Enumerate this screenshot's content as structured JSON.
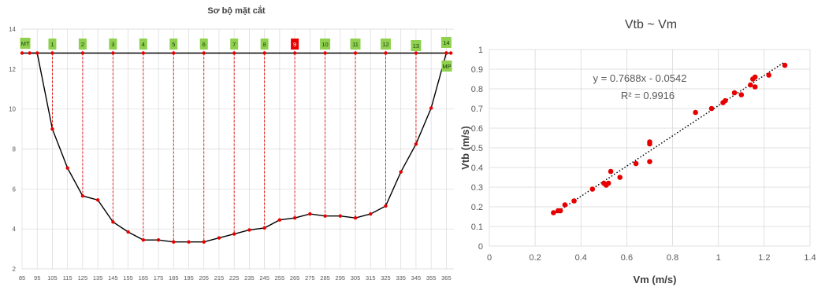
{
  "chart_data": [
    {
      "type": "line",
      "title": "Sơ bộ mặt cắt",
      "xlabel": "",
      "ylabel": "",
      "xlim": [
        85,
        370
      ],
      "ylim": [
        2,
        14
      ],
      "x_ticks": [
        "85",
        "95",
        "105",
        "115",
        "125",
        "135",
        "145",
        "155",
        "165",
        "175",
        "185",
        "195",
        "205",
        "215",
        "225",
        "235",
        "245",
        "255",
        "265",
        "275",
        "285",
        "295",
        "305",
        "315",
        "325",
        "335",
        "345",
        "355",
        "365"
      ],
      "y_ticks": [
        "2",
        "4",
        "6",
        "8",
        "10",
        "12",
        "14"
      ],
      "grid": true,
      "water_level": 12.8,
      "water_line_x": [
        85,
        365
      ],
      "profile": {
        "x": [
          90,
          95,
          105,
          115,
          125,
          135,
          145,
          155,
          165,
          175,
          185,
          195,
          205,
          215,
          225,
          235,
          245,
          255,
          265,
          275,
          285,
          295,
          305,
          315,
          325,
          335,
          345,
          355,
          365,
          368
        ],
        "y": [
          12.8,
          12.8,
          9.0,
          7.05,
          5.65,
          5.45,
          4.35,
          3.85,
          3.45,
          3.45,
          3.35,
          3.35,
          3.35,
          3.55,
          3.75,
          3.95,
          4.05,
          4.45,
          4.55,
          4.75,
          4.65,
          4.65,
          4.55,
          4.75,
          5.15,
          6.85,
          8.25,
          10.05,
          12.8,
          12.8
        ]
      },
      "verticals": [
        {
          "label": "MT",
          "x": 85,
          "flag": "green"
        },
        {
          "label": "1",
          "x": 105,
          "flag": "green"
        },
        {
          "label": "2",
          "x": 125,
          "flag": "green"
        },
        {
          "label": "3",
          "x": 145,
          "flag": "green"
        },
        {
          "label": "4",
          "x": 165,
          "flag": "green"
        },
        {
          "label": "5",
          "x": 185,
          "flag": "green"
        },
        {
          "label": "6",
          "x": 205,
          "flag": "green"
        },
        {
          "label": "7",
          "x": 225,
          "flag": "green"
        },
        {
          "label": "8",
          "x": 245,
          "flag": "green"
        },
        {
          "label": "9",
          "x": 265,
          "flag": "red"
        },
        {
          "label": "10",
          "x": 285,
          "flag": "green"
        },
        {
          "label": "11",
          "x": 305,
          "flag": "green"
        },
        {
          "label": "12",
          "x": 325,
          "flag": "green"
        },
        {
          "label": "13",
          "x": 345,
          "flag": "green"
        },
        {
          "label": "14",
          "x": 365,
          "flag": "green"
        },
        {
          "label": "MP",
          "x": 368,
          "flag": "green"
        }
      ],
      "colors": {
        "line": "#000000",
        "marker": "#e60000",
        "flag_green": "#8fd14f",
        "flag_red": "#e60000",
        "grid": "#d9d9d9"
      }
    },
    {
      "type": "scatter",
      "title": "Vtb ~ Vm",
      "xlabel": "Vm (m/s)",
      "ylabel": "Vtb (m/s)",
      "xlim": [
        0,
        1.4
      ],
      "ylim": [
        0,
        1
      ],
      "x_ticks": [
        "0",
        "0.2",
        "0.4",
        "0.6",
        "0.8",
        "1",
        "1.2",
        "1.4"
      ],
      "y_ticks": [
        "0",
        "0.1",
        "0.2",
        "0.3",
        "0.4",
        "0.5",
        "0.6",
        "0.7",
        "0.8",
        "0.9",
        "1"
      ],
      "grid": true,
      "points": {
        "x": [
          0.28,
          0.3,
          0.31,
          0.33,
          0.37,
          0.45,
          0.5,
          0.51,
          0.52,
          0.53,
          0.57,
          0.64,
          0.7,
          0.7,
          0.7,
          0.9,
          0.97,
          1.02,
          1.03,
          1.07,
          1.1,
          1.14,
          1.15,
          1.16,
          1.16,
          1.22,
          1.29
        ],
        "y": [
          0.17,
          0.18,
          0.18,
          0.21,
          0.23,
          0.29,
          0.32,
          0.31,
          0.32,
          0.38,
          0.35,
          0.42,
          0.43,
          0.52,
          0.53,
          0.68,
          0.7,
          0.73,
          0.74,
          0.78,
          0.77,
          0.82,
          0.85,
          0.86,
          0.81,
          0.87,
          0.92
        ]
      },
      "trendline": {
        "slope": 0.7688,
        "intercept": -0.0542,
        "x_range": [
          0.28,
          1.29
        ]
      },
      "annotations": [
        "y = 0.7688x - 0.0542",
        "R² = 0.9916"
      ],
      "colors": {
        "marker": "#e60000",
        "trendline": "#000000",
        "grid": "#d9d9d9"
      }
    }
  ]
}
